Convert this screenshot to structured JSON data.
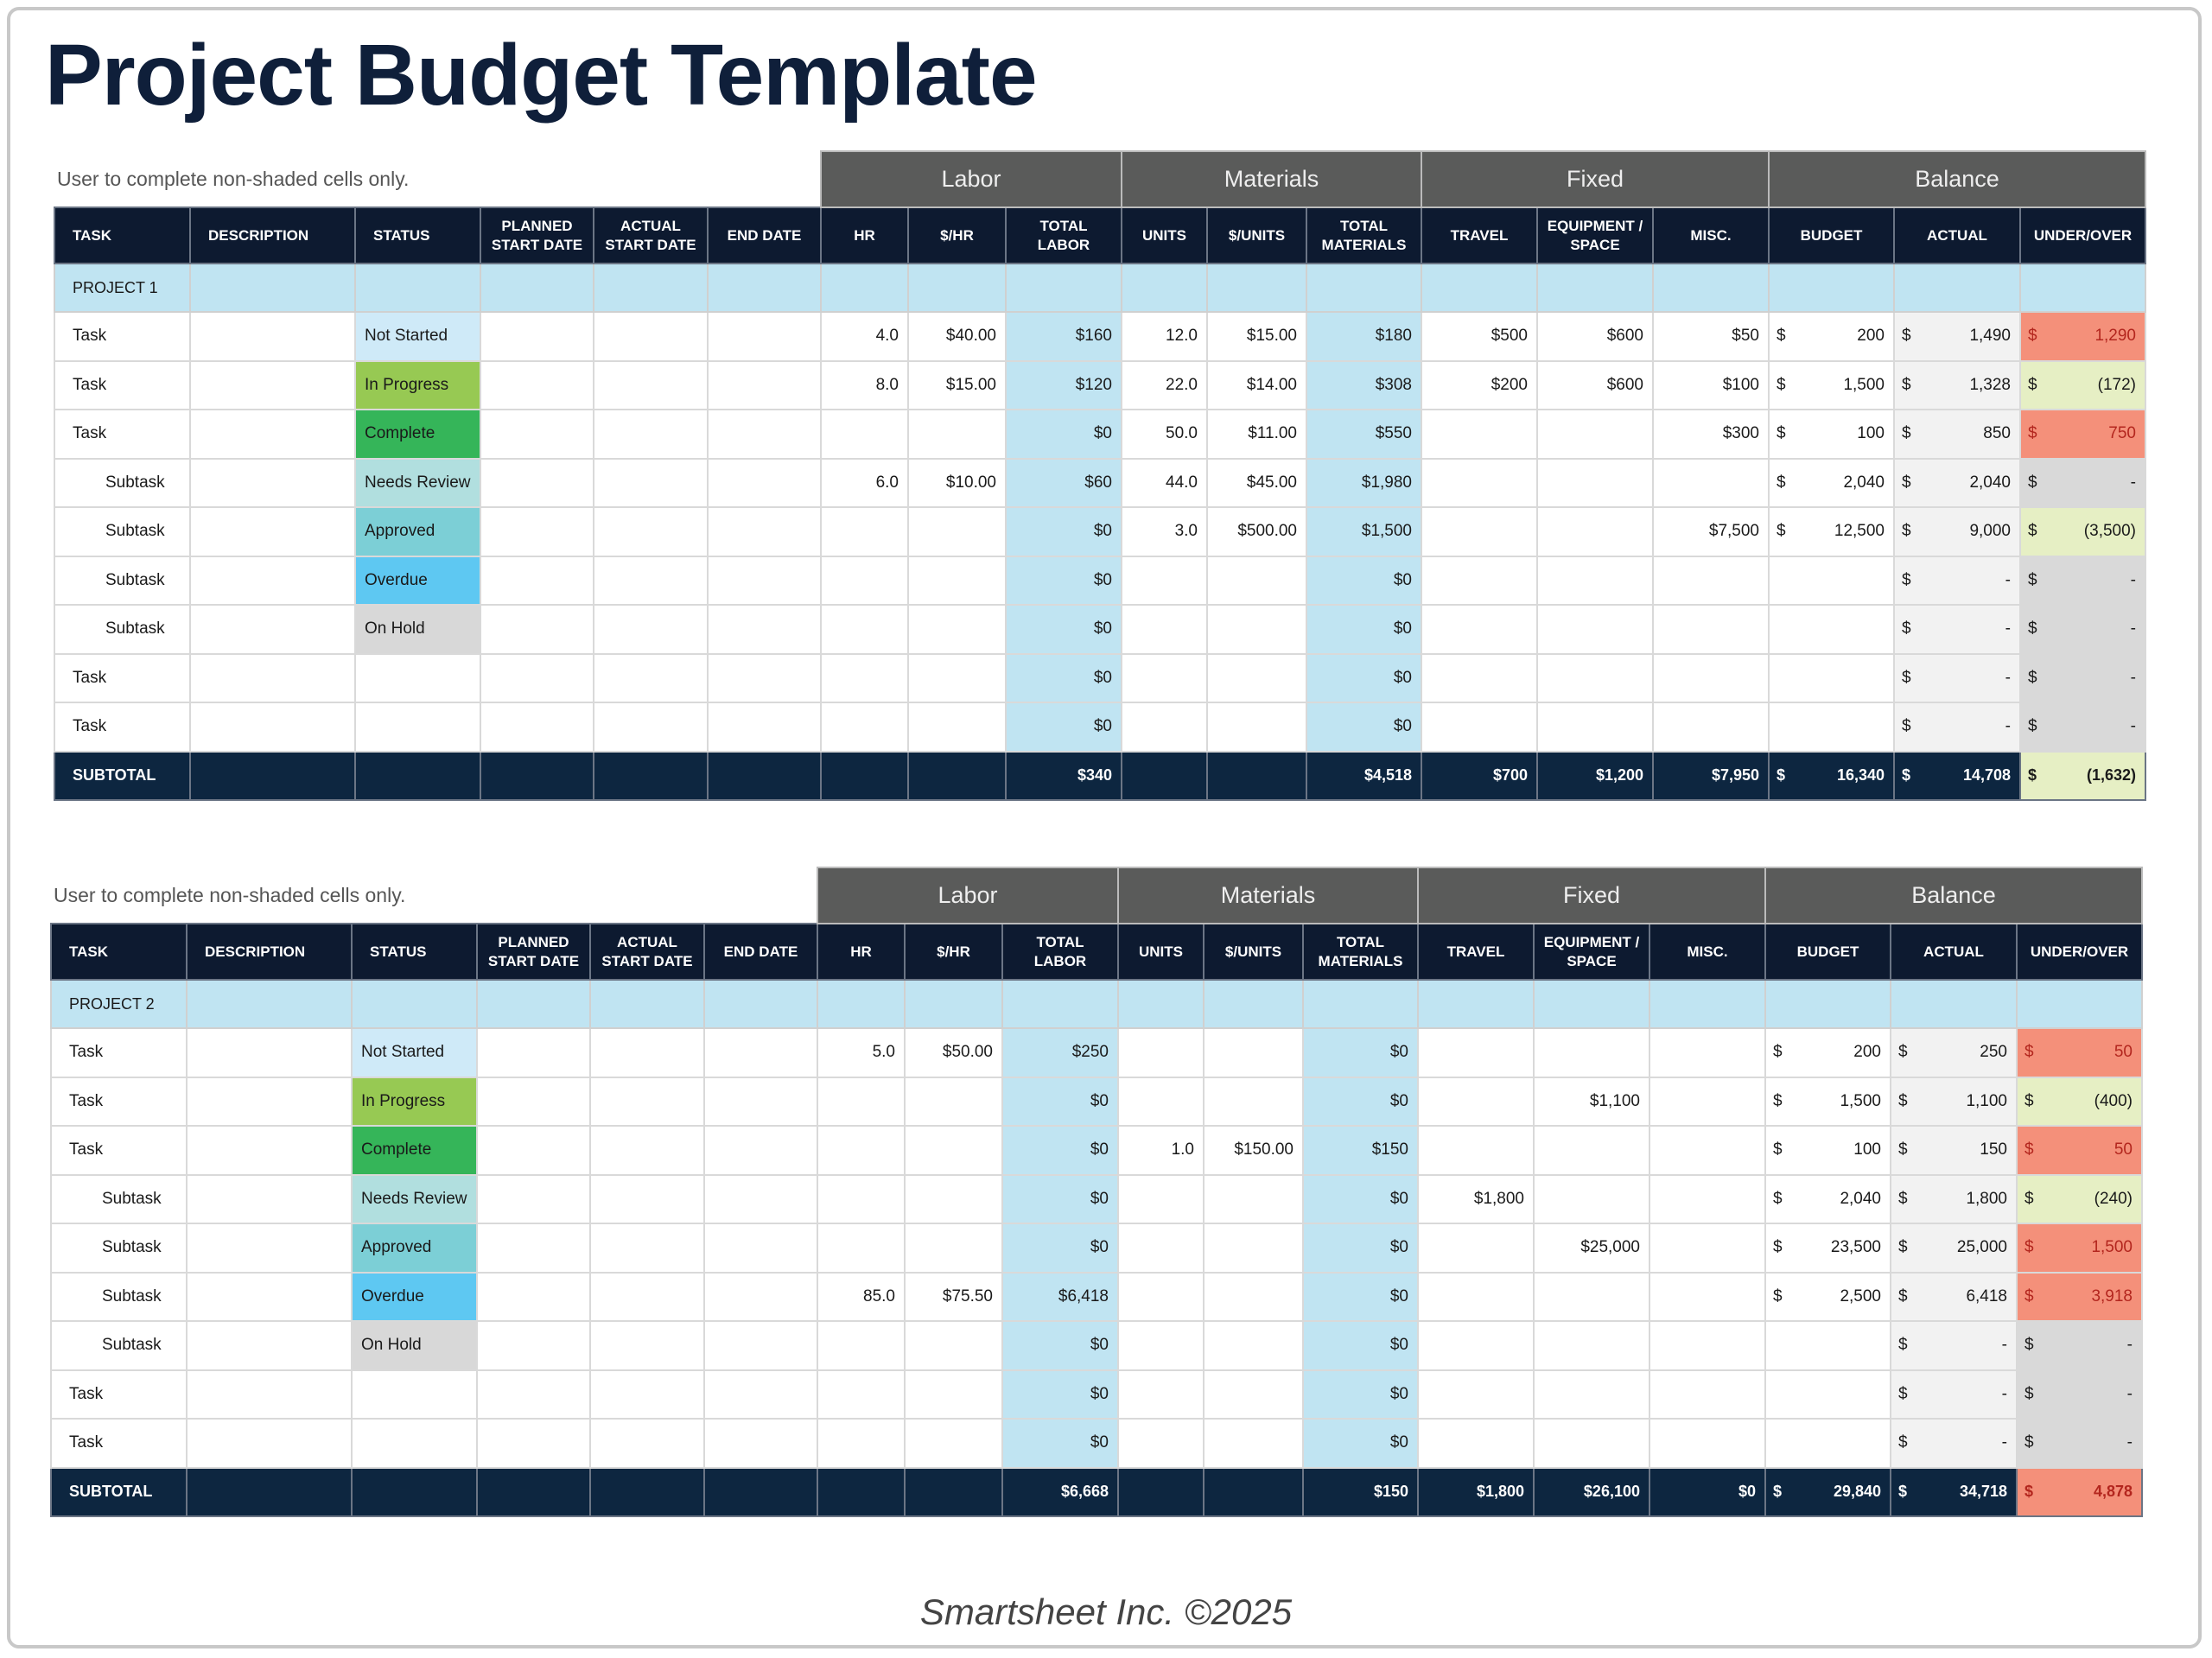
{
  "title": "Project Budget Template",
  "note": "User to complete non-shaded cells only.",
  "currency": "$",
  "groups": [
    "Labor",
    "Materials",
    "Fixed",
    "Balance"
  ],
  "columns": [
    "TASK",
    "DESCRIPTION",
    "STATUS",
    "PLANNED START DATE",
    "ACTUAL START DATE",
    "END DATE",
    "HR",
    "$/HR",
    "TOTAL LABOR",
    "UNITS",
    "$/UNITS",
    "TOTAL MATERIALS",
    "TRAVEL",
    "EQUIPMENT / SPACE",
    "MISC.",
    "BUDGET",
    "ACTUAL",
    "UNDER/OVER"
  ],
  "status_colors": {
    "Not Started": "#cfeaf8",
    "In Progress": "#97c953",
    "Complete": "#35b559",
    "Needs Review": "#b1dfdf",
    "Approved": "#7ccfd6",
    "Overdue": "#5ec8f2",
    "On Hold": "#d8d8d8"
  },
  "state_colors": {
    "over": "#f4907a",
    "under": "#e6efc4",
    "zero": "#d9d9d9"
  },
  "projects": [
    {
      "name": "PROJECT 1",
      "rows": [
        {
          "task": "Task",
          "sub": false,
          "status": "Not Started",
          "hr": "4.0",
          "rate": "$40.00",
          "total_labor": "$160",
          "units": "12.0",
          "unit_cost": "$15.00",
          "total_materials": "$180",
          "travel": "$500",
          "equipment": "$600",
          "misc": "$50",
          "budget": "200",
          "actual": "1,490",
          "under_over": "1,290",
          "state": "over"
        },
        {
          "task": "Task",
          "sub": false,
          "status": "In Progress",
          "hr": "8.0",
          "rate": "$15.00",
          "total_labor": "$120",
          "units": "22.0",
          "unit_cost": "$14.00",
          "total_materials": "$308",
          "travel": "$200",
          "equipment": "$600",
          "misc": "$100",
          "budget": "1,500",
          "actual": "1,328",
          "under_over": "(172)",
          "state": "under"
        },
        {
          "task": "Task",
          "sub": false,
          "status": "Complete",
          "hr": "",
          "rate": "",
          "total_labor": "$0",
          "units": "50.0",
          "unit_cost": "$11.00",
          "total_materials": "$550",
          "travel": "",
          "equipment": "",
          "misc": "$300",
          "budget": "100",
          "actual": "850",
          "under_over": "750",
          "state": "over"
        },
        {
          "task": "Subtask",
          "sub": true,
          "status": "Needs Review",
          "hr": "6.0",
          "rate": "$10.00",
          "total_labor": "$60",
          "units": "44.0",
          "unit_cost": "$45.00",
          "total_materials": "$1,980",
          "travel": "",
          "equipment": "",
          "misc": "",
          "budget": "2,040",
          "actual": "2,040",
          "under_over": "-",
          "state": "zero"
        },
        {
          "task": "Subtask",
          "sub": true,
          "status": "Approved",
          "hr": "",
          "rate": "",
          "total_labor": "$0",
          "units": "3.0",
          "unit_cost": "$500.00",
          "total_materials": "$1,500",
          "travel": "",
          "equipment": "",
          "misc": "$7,500",
          "budget": "12,500",
          "actual": "9,000",
          "under_over": "(3,500)",
          "state": "under"
        },
        {
          "task": "Subtask",
          "sub": true,
          "status": "Overdue",
          "hr": "",
          "rate": "",
          "total_labor": "$0",
          "units": "",
          "unit_cost": "",
          "total_materials": "$0",
          "travel": "",
          "equipment": "",
          "misc": "",
          "budget": "",
          "actual": "-",
          "under_over": "-",
          "state": "zero"
        },
        {
          "task": "Subtask",
          "sub": true,
          "status": "On Hold",
          "hr": "",
          "rate": "",
          "total_labor": "$0",
          "units": "",
          "unit_cost": "",
          "total_materials": "$0",
          "travel": "",
          "equipment": "",
          "misc": "",
          "budget": "",
          "actual": "-",
          "under_over": "-",
          "state": "zero"
        },
        {
          "task": "Task",
          "sub": false,
          "status": "",
          "hr": "",
          "rate": "",
          "total_labor": "$0",
          "units": "",
          "unit_cost": "",
          "total_materials": "$0",
          "travel": "",
          "equipment": "",
          "misc": "",
          "budget": "",
          "actual": "-",
          "under_over": "-",
          "state": "zero"
        },
        {
          "task": "Task",
          "sub": false,
          "status": "",
          "hr": "",
          "rate": "",
          "total_labor": "$0",
          "units": "",
          "unit_cost": "",
          "total_materials": "$0",
          "travel": "",
          "equipment": "",
          "misc": "",
          "budget": "",
          "actual": "-",
          "under_over": "-",
          "state": "zero"
        }
      ],
      "subtotal": {
        "label": "SUBTOTAL",
        "total_labor": "$340",
        "total_materials": "$4,518",
        "travel": "$700",
        "equipment": "$1,200",
        "misc": "$7,950",
        "budget": "16,340",
        "actual": "14,708",
        "under_over": "(1,632)",
        "state": "under"
      }
    },
    {
      "name": "PROJECT 2",
      "rows": [
        {
          "task": "Task",
          "sub": false,
          "status": "Not Started",
          "hr": "5.0",
          "rate": "$50.00",
          "total_labor": "$250",
          "units": "",
          "unit_cost": "",
          "total_materials": "$0",
          "travel": "",
          "equipment": "",
          "misc": "",
          "budget": "200",
          "actual": "250",
          "under_over": "50",
          "state": "over"
        },
        {
          "task": "Task",
          "sub": false,
          "status": "In Progress",
          "hr": "",
          "rate": "",
          "total_labor": "$0",
          "units": "",
          "unit_cost": "",
          "total_materials": "$0",
          "travel": "",
          "equipment": "$1,100",
          "misc": "",
          "budget": "1,500",
          "actual": "1,100",
          "under_over": "(400)",
          "state": "under"
        },
        {
          "task": "Task",
          "sub": false,
          "status": "Complete",
          "hr": "",
          "rate": "",
          "total_labor": "$0",
          "units": "1.0",
          "unit_cost": "$150.00",
          "total_materials": "$150",
          "travel": "",
          "equipment": "",
          "misc": "",
          "budget": "100",
          "actual": "150",
          "under_over": "50",
          "state": "over"
        },
        {
          "task": "Subtask",
          "sub": true,
          "status": "Needs Review",
          "hr": "",
          "rate": "",
          "total_labor": "$0",
          "units": "",
          "unit_cost": "",
          "total_materials": "$0",
          "travel": "$1,800",
          "equipment": "",
          "misc": "",
          "budget": "2,040",
          "actual": "1,800",
          "under_over": "(240)",
          "state": "under"
        },
        {
          "task": "Subtask",
          "sub": true,
          "status": "Approved",
          "hr": "",
          "rate": "",
          "total_labor": "$0",
          "units": "",
          "unit_cost": "",
          "total_materials": "$0",
          "travel": "",
          "equipment": "$25,000",
          "misc": "",
          "budget": "23,500",
          "actual": "25,000",
          "under_over": "1,500",
          "state": "over"
        },
        {
          "task": "Subtask",
          "sub": true,
          "status": "Overdue",
          "hr": "85.0",
          "rate": "$75.50",
          "total_labor": "$6,418",
          "units": "",
          "unit_cost": "",
          "total_materials": "$0",
          "travel": "",
          "equipment": "",
          "misc": "",
          "budget": "2,500",
          "actual": "6,418",
          "under_over": "3,918",
          "state": "over"
        },
        {
          "task": "Subtask",
          "sub": true,
          "status": "On Hold",
          "hr": "",
          "rate": "",
          "total_labor": "$0",
          "units": "",
          "unit_cost": "",
          "total_materials": "$0",
          "travel": "",
          "equipment": "",
          "misc": "",
          "budget": "",
          "actual": "-",
          "under_over": "-",
          "state": "zero"
        },
        {
          "task": "Task",
          "sub": false,
          "status": "",
          "hr": "",
          "rate": "",
          "total_labor": "$0",
          "units": "",
          "unit_cost": "",
          "total_materials": "$0",
          "travel": "",
          "equipment": "",
          "misc": "",
          "budget": "",
          "actual": "-",
          "under_over": "-",
          "state": "zero"
        },
        {
          "task": "Task",
          "sub": false,
          "status": "",
          "hr": "",
          "rate": "",
          "total_labor": "$0",
          "units": "",
          "unit_cost": "",
          "total_materials": "$0",
          "travel": "",
          "equipment": "",
          "misc": "",
          "budget": "",
          "actual": "-",
          "under_over": "-",
          "state": "zero"
        }
      ],
      "subtotal": {
        "label": "SUBTOTAL",
        "total_labor": "$6,668",
        "total_materials": "$150",
        "travel": "$1,800",
        "equipment": "$26,100",
        "misc": "$0",
        "budget": "29,840",
        "actual": "34,718",
        "under_over": "4,878",
        "state": "over"
      }
    }
  ],
  "footer": "Smartsheet Inc. ©2025"
}
